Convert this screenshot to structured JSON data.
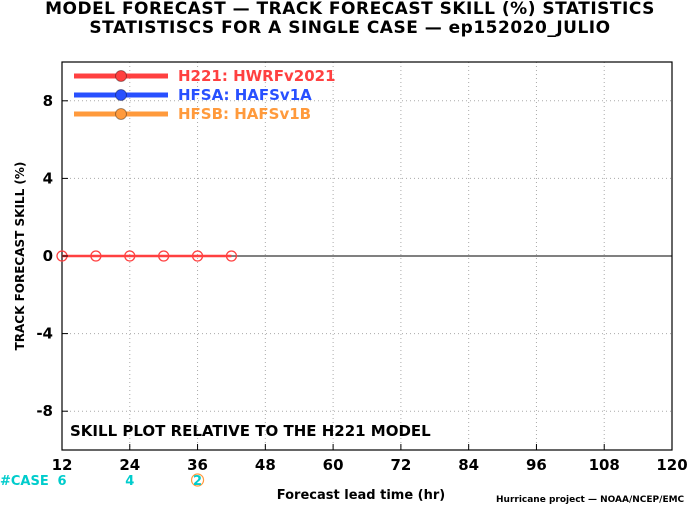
{
  "header": {
    "line1": "MODEL FORECAST — TRACK FORECAST SKILL (%) STATISTICS",
    "line2": "STATISTISCS FOR A SINGLE CASE — ep152020_JULIO"
  },
  "annotation": "SKILL PLOT RELATIVE TO THE H221 MODEL",
  "credit": "Hurricane project — NOAA/NCEP/EMC",
  "case_row": {
    "label": "#CASE",
    "color": "#00cccc",
    "entries": [
      {
        "x": 12,
        "text": "6"
      },
      {
        "x": 24,
        "text": "4"
      },
      {
        "x": 36,
        "text": "2"
      }
    ]
  },
  "chart_data": {
    "type": "line",
    "title": "MODEL FORECAST — TRACK FORECAST SKILL (%) STATISTICS",
    "subtitle": "STATISTISCS FOR A SINGLE CASE — ep152020_JULIO",
    "xlabel": "Forecast lead time (hr)",
    "ylabel": "TRACK FORECAST SKILL (%)",
    "xlim": [
      12,
      120
    ],
    "ylim": [
      -10,
      10
    ],
    "xticks": [
      12,
      24,
      36,
      48,
      60,
      72,
      84,
      96,
      108,
      120
    ],
    "yticks": [
      -8,
      -4,
      0,
      4,
      8
    ],
    "grid": true,
    "legend_position": "top-left",
    "series": [
      {
        "name": "H221: HWRFv2021",
        "color": "#ff4040",
        "x": [
          12,
          18,
          24,
          30,
          36,
          42
        ],
        "values": [
          0,
          0,
          0,
          0,
          0,
          0
        ]
      },
      {
        "name": "HFSA: HAFSv1A",
        "color": "#2850ff",
        "x": [],
        "values": []
      },
      {
        "name": "HFSB: HAFSv1B",
        "color": "#ff9a3c",
        "x": [],
        "values": []
      }
    ]
  }
}
